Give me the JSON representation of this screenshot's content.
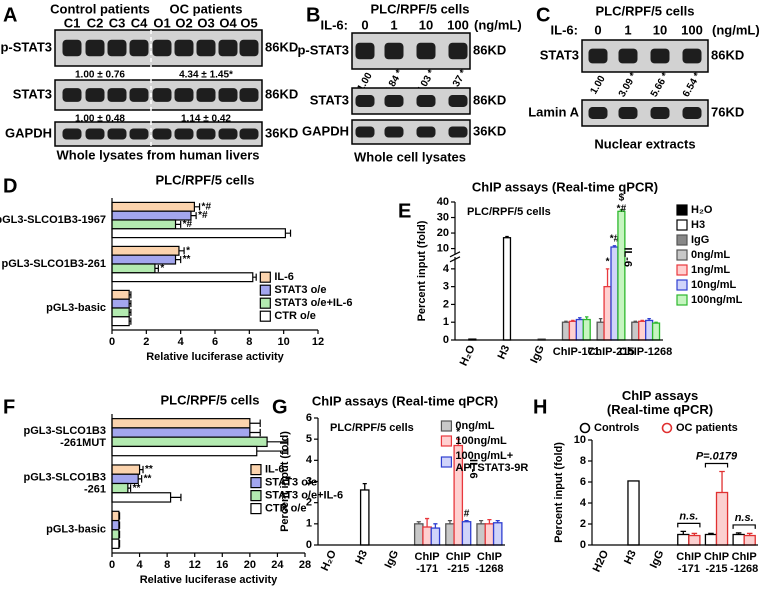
{
  "blots": [
    {
      "label": "A",
      "groups": [
        "Control patients",
        "OC patients"
      ],
      "lanes": [
        "C1",
        "C2",
        "C3",
        "C4",
        "O1",
        "O2",
        "O3",
        "O4",
        "O5"
      ],
      "rows": [
        {
          "name": "p-STAT3",
          "size": "86KD",
          "quant": [
            "1.00 ± 0.76",
            "4.34 ± 1.45*"
          ]
        },
        {
          "name": "STAT3",
          "size": "86KD",
          "quant": [
            "1.00 ± 0.48",
            "1.14 ± 0.42"
          ]
        },
        {
          "name": "GAPDH",
          "size": "36KD"
        }
      ],
      "caption": "Whole lysates from human livers"
    },
    {
      "label": "B",
      "title": "PLC/RPF/5 cells",
      "treatment": "IL-6:",
      "lanes": [
        "0",
        "1",
        "10",
        "100"
      ],
      "unit": "(ng/mL)",
      "rows": [
        {
          "name": "p-STAT3",
          "size": "86KD",
          "quant": [
            "1.00",
            "4.84 *",
            "7.03 *",
            "8.37 *"
          ]
        },
        {
          "name": "STAT3",
          "size": "86KD"
        },
        {
          "name": "GAPDH",
          "size": "36KD"
        }
      ],
      "caption": "Whole cell lysates"
    },
    {
      "label": "C",
      "title": "PLC/RPF/5 cells",
      "treatment": "IL-6:",
      "lanes": [
        "0",
        "1",
        "10",
        "100"
      ],
      "unit": "(ng/mL)",
      "rows": [
        {
          "name": "STAT3",
          "size": "86KD",
          "quant": [
            "1.00",
            "3.09 *",
            "5.66 *",
            "6.54 *"
          ]
        },
        {
          "name": "Lamin A",
          "size": "76KD"
        }
      ],
      "caption": "Nuclear extracts"
    }
  ],
  "chart_data": [
    {
      "type": "hbar",
      "label": "D",
      "title": "PLC/RPF/5 cells",
      "xlabel": "Relative luciferase activity",
      "categories": [
        "pGL3-SLCO1B3-1967",
        "pGL3-SLCO1B3-261",
        "pGL3-basic"
      ],
      "series": [
        {
          "name": "IL-6",
          "color": "#fbd3ad",
          "values": [
            4.8,
            3.9,
            1.0
          ],
          "errors": [
            0.3,
            0.3,
            0.1
          ],
          "signif": [
            "*#",
            "*",
            null
          ]
        },
        {
          "name": "STAT3 o/e",
          "color": "#a3a6ee",
          "values": [
            4.6,
            3.7,
            1.0
          ],
          "errors": [
            0.3,
            0.3,
            0.1
          ],
          "signif": [
            "*#",
            "**",
            null
          ]
        },
        {
          "name": "STAT3 o/e+IL-6",
          "color": "#b3eab0",
          "values": [
            3.7,
            2.5,
            1.0
          ],
          "errors": [
            0.3,
            0.2,
            0.1
          ],
          "signif": [
            "*#",
            "*",
            null
          ]
        },
        {
          "name": "CTR o/e",
          "color": "#ffffff",
          "values": [
            10.1,
            8.2,
            1.0
          ],
          "errors": [
            0.3,
            0.2,
            0.1
          ]
        }
      ],
      "xlim": [
        0,
        12
      ],
      "xticks": [
        0,
        2,
        4,
        6,
        8,
        10,
        12
      ],
      "legend": "lower-right"
    },
    {
      "type": "bar",
      "label": "E",
      "title": "ChIP assays (Real-time qPCR)",
      "subtitle": "PLC/RPF/5 cells",
      "ylabel": "Percent input (fold)",
      "categories": [
        "H₂O",
        "H3",
        "IgG",
        "ChIP-171",
        "ChIP-215",
        "ChIP-1268"
      ],
      "series": [
        {
          "name": "H₂O",
          "color": "#000000",
          "edge": "#000000",
          "values": [
            0.05,
            null,
            null,
            null,
            null,
            null
          ]
        },
        {
          "name": "H3",
          "color": "#ffffff",
          "edge": "#000000",
          "values": [
            null,
            17,
            null,
            null,
            null,
            null
          ],
          "errors": [
            null,
            0.8,
            null,
            null,
            null,
            null
          ]
        },
        {
          "name": "IgG",
          "color": "#888888",
          "edge": "#555555",
          "values": [
            null,
            null,
            0.05,
            null,
            null,
            null
          ]
        },
        {
          "name": "0ng/mL",
          "color": "#c8c8c8",
          "edge": "#555555",
          "values": [
            null,
            null,
            null,
            1.0,
            1.0,
            1.0
          ],
          "errors": [
            null,
            null,
            null,
            0.05,
            0.2,
            0.05
          ]
        },
        {
          "name": "1ng/mL",
          "color": "#ffd0d0",
          "edge": "#e8383d",
          "values": [
            null,
            null,
            null,
            1.05,
            3.0,
            1.05
          ],
          "errors": [
            null,
            null,
            null,
            0.05,
            1.0,
            0.05
          ],
          "signif": [
            null,
            null,
            null,
            null,
            "*",
            null
          ]
        },
        {
          "name": "10ng/mL",
          "color": "#d0d4fa",
          "edge": "#2f3fd0",
          "values": [
            null,
            null,
            null,
            1.15,
            11,
            1.1
          ],
          "errors": [
            null,
            null,
            null,
            0.1,
            0.8,
            0.1
          ],
          "signif": [
            null,
            null,
            null,
            null,
            "*#",
            null
          ]
        },
        {
          "name": "100ng/mL",
          "color": "#c6f5c0",
          "edge": "#2db82d",
          "values": [
            null,
            null,
            null,
            1.15,
            34,
            0.95
          ],
          "errors": [
            null,
            null,
            null,
            0.15,
            1.0,
            0.05
          ],
          "signif": [
            null,
            null,
            null,
            null,
            "$\n*#",
            null
          ]
        }
      ],
      "ylim": [
        0,
        40
      ],
      "ybreak": [
        4.5,
        8
      ],
      "yticks": [
        0,
        1,
        2,
        3,
        4,
        10,
        20,
        30,
        40
      ],
      "group_label": "IL-6",
      "legend": "right"
    },
    {
      "type": "hbar",
      "label": "F",
      "title": "PLC/RPF/5 cells",
      "xlabel": "Relative luciferase activity",
      "categories": [
        "pGL3-SLCO1B3\n-261MUT",
        "pGL3-SLCO1B3\n-261",
        "pGL3-basic"
      ],
      "series": [
        {
          "name": "IL-6",
          "color": "#fbd3ad",
          "values": [
            20,
            4.0,
            1.0
          ],
          "errors": [
            1.5,
            0.5,
            0.1
          ],
          "signif": [
            null,
            "**",
            null
          ]
        },
        {
          "name": "STAT3 o/e",
          "color": "#a3a6ee",
          "values": [
            20,
            3.8,
            1.0
          ],
          "errors": [
            1.5,
            0.5,
            0.1
          ],
          "signif": [
            null,
            "**",
            null
          ]
        },
        {
          "name": "STAT3 o/e+IL-6",
          "color": "#b3eab0",
          "values": [
            22.5,
            2.3,
            1.0
          ],
          "errors": [
            3.0,
            0.4,
            0.1
          ],
          "signif": [
            null,
            "**",
            null
          ]
        },
        {
          "name": "CTR o/e",
          "color": "#ffffff",
          "values": [
            21,
            8.5,
            1.0
          ],
          "errors": [
            4.5,
            1.5,
            0.1
          ]
        }
      ],
      "xlim": [
        0,
        28
      ],
      "xticks": [
        0,
        4,
        8,
        12,
        16,
        20,
        24,
        28
      ],
      "legend": "center-right"
    },
    {
      "type": "bar",
      "label": "G",
      "title": "ChIP assays (Real-time qPCR)",
      "subtitle": "PLC/RPF/5 cells",
      "ylabel": "Percent input (fold)",
      "categories": [
        "H₂O",
        "H3",
        "IgG",
        "ChIP\n-171",
        "ChIP\n-215",
        "ChIP\n-1268"
      ],
      "control": {
        "color": "#ffffff",
        "edge": "#000000",
        "values": [
          null,
          2.6,
          null,
          null,
          null,
          null
        ],
        "errors": [
          null,
          0.3,
          null,
          null,
          null,
          null
        ]
      },
      "series": [
        {
          "name": "0ng/mL",
          "color": "#c8c8c8",
          "edge": "#555555",
          "values": [
            null,
            null,
            null,
            1.0,
            1.0,
            1.0
          ],
          "errors": [
            null,
            null,
            null,
            0.1,
            0.15,
            0.15
          ]
        },
        {
          "name": "100ng/mL",
          "color": "#ffd0d0",
          "edge": "#e8383d",
          "values": [
            null,
            null,
            null,
            0.85,
            4.7,
            1.0
          ],
          "errors": [
            null,
            null,
            null,
            0.4,
            0.3,
            0.2
          ],
          "signif": [
            null,
            null,
            null,
            null,
            "*",
            null
          ]
        },
        {
          "name": "100ng/mL+\nAPTSTAT3-9R",
          "color": "#d0d4fa",
          "edge": "#2f3fd0",
          "values": [
            null,
            null,
            null,
            0.8,
            1.1,
            1.05
          ],
          "errors": [
            null,
            null,
            null,
            0.2,
            0.05,
            0.1
          ],
          "signif": [
            null,
            null,
            null,
            null,
            "#",
            null
          ]
        }
      ],
      "ylim": [
        0,
        6
      ],
      "yticks": [
        0,
        1,
        2,
        3,
        4,
        5,
        6
      ],
      "group_label": "IL-6",
      "legend": "upper-right"
    },
    {
      "type": "bar",
      "label": "H",
      "title": "ChIP assays\n(Real-time qPCR)",
      "ylabel": "Percent input (fold)",
      "categories": [
        "H2O",
        "H3",
        "IgG",
        "ChIP\n-171",
        "ChIP\n-215",
        "ChIP\n-1268"
      ],
      "control": {
        "color": "#ffffff",
        "edge": "#000000",
        "values": [
          null,
          6.1,
          null,
          null,
          null,
          null
        ]
      },
      "series": [
        {
          "name": "Controls",
          "color": "#ffffff",
          "edge": "#000000",
          "marker": "circle",
          "values": [
            null,
            null,
            null,
            1.0,
            1.0,
            1.0
          ],
          "errors": [
            null,
            null,
            null,
            0.3,
            0.1,
            0.15
          ]
        },
        {
          "name": "OC patients",
          "color": "#fbd0d0",
          "edge": "#e03030",
          "marker": "circle",
          "values": [
            null,
            null,
            null,
            0.9,
            5.0,
            0.9
          ],
          "errors": [
            null,
            null,
            null,
            0.2,
            2.0,
            0.2
          ]
        }
      ],
      "comparisons": [
        null,
        null,
        null,
        "n.s.",
        "P=.0179",
        "n.s."
      ],
      "ylim": [
        0,
        10
      ],
      "yticks": [
        0,
        2,
        4,
        6,
        8,
        10
      ],
      "legend": "top"
    }
  ]
}
